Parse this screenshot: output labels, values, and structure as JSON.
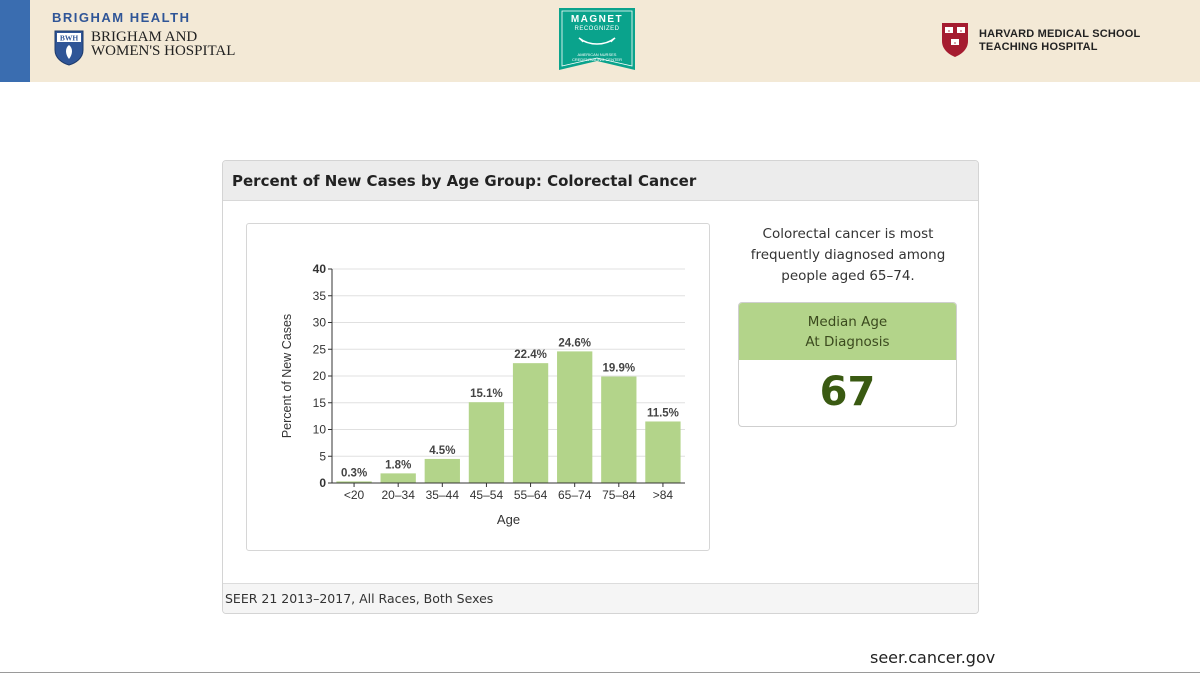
{
  "header": {
    "brigham_health": "BRIGHAM HEALTH",
    "bwh_shield_text": "BWH",
    "bwh_name_line1": "BRIGHAM AND",
    "bwh_name_line2": "WOMEN'S HOSPITAL",
    "magnet_line1": "MAGNET",
    "magnet_line2": "RECOGNIZED",
    "magnet_line3": "AMERICAN NURSES",
    "magnet_line4": "CREDENTIALING CENTER",
    "hms_line1": "HARVARD MEDICAL SCHOOL",
    "hms_line2": "TEACHING HOSPITAL",
    "colors": {
      "band": "#f3e9d6",
      "accent": "#3a6db0",
      "magnet": "#0aa38c",
      "harvard_crimson": "#a51c30"
    }
  },
  "card": {
    "title": "Percent of New Cases by Age Group: Colorectal Cancer",
    "side_text": "Colorectal cancer is most frequently diagnosed among people aged 65–74.",
    "median_label_line1": "Median Age",
    "median_label_line2": "At Diagnosis",
    "median_value": "67",
    "source": "SEER 21 2013–2017, All Races, Both Sexes",
    "colors": {
      "median_header": "#b3d48a",
      "median_value": "#3a5a12"
    }
  },
  "chart_data": {
    "type": "bar",
    "title": "",
    "xlabel": "Age",
    "ylabel": "Percent of New Cases",
    "categories": [
      "<20",
      "20–34",
      "35–44",
      "45–54",
      "55–64",
      "65–74",
      "75–84",
      ">84"
    ],
    "values": [
      0.3,
      1.8,
      4.5,
      15.1,
      22.4,
      24.6,
      19.9,
      11.5
    ],
    "data_labels": [
      "0.3%",
      "1.8%",
      "4.5%",
      "15.1%",
      "22.4%",
      "24.6%",
      "19.9%",
      "11.5%"
    ],
    "ylim": [
      0,
      40
    ],
    "yticks": [
      "0",
      "5",
      "10",
      "15",
      "20",
      "25",
      "30",
      "35",
      "40"
    ],
    "grid": true,
    "legend": "none",
    "bar_color": "#b3d48a"
  },
  "footer": {
    "url": "seer.cancer.gov"
  }
}
